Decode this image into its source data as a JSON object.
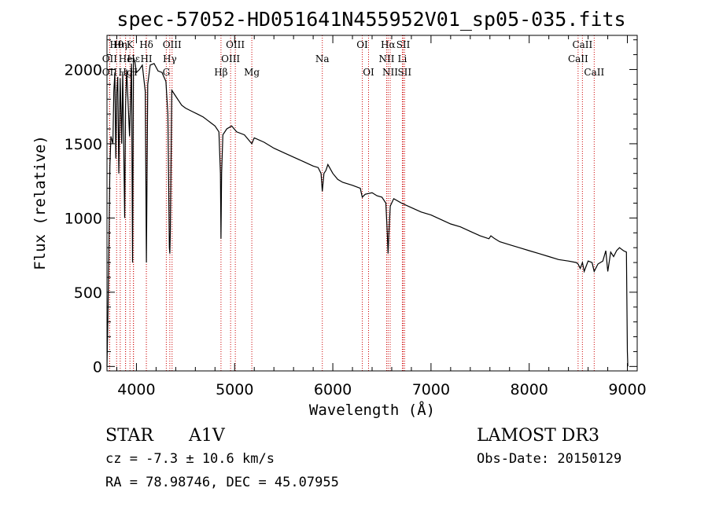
{
  "chart_data": {
    "type": "line",
    "title": "spec-57052-HD051641N455952V01_sp05-035.fits",
    "xlabel": "Wavelength (Å)",
    "ylabel": "Flux (relative)",
    "xlim": [
      3700,
      9100
    ],
    "ylim": [
      -30,
      2230
    ],
    "x_ticks": [
      4000,
      5000,
      6000,
      7000,
      8000,
      9000
    ],
    "y_ticks": [
      0,
      500,
      1000,
      1500,
      2000
    ],
    "series": [
      {
        "name": "spectrum",
        "x": [
          3700,
          3710,
          3720,
          3730,
          3740,
          3760,
          3770,
          3780,
          3790,
          3800,
          3810,
          3820,
          3835,
          3850,
          3860,
          3880,
          3889,
          3900,
          3930,
          3950,
          3960,
          3970,
          3985,
          4000,
          4030,
          4060,
          4090,
          4101,
          4115,
          4140,
          4180,
          4220,
          4260,
          4300,
          4320,
          4335,
          4340,
          4345,
          4360,
          4400,
          4430,
          4460,
          4500,
          4560,
          4620,
          4680,
          4720,
          4760,
          4800,
          4840,
          4855,
          4861,
          4867,
          4880,
          4920,
          4970,
          5020,
          5100,
          5175,
          5200,
          5300,
          5400,
          5500,
          5600,
          5700,
          5800,
          5850,
          5880,
          5893,
          5910,
          5930,
          5950,
          6000,
          6050,
          6100,
          6200,
          6280,
          6300,
          6330,
          6400,
          6450,
          6500,
          6540,
          6555,
          6563,
          6570,
          6585,
          6620,
          6700,
          6800,
          6900,
          7000,
          7100,
          7200,
          7300,
          7400,
          7500,
          7590,
          7610,
          7650,
          7700,
          7800,
          7900,
          8000,
          8100,
          8200,
          8300,
          8400,
          8480,
          8498,
          8520,
          8542,
          8560,
          8600,
          8640,
          8662,
          8700,
          8750,
          8780,
          8800,
          8830,
          8860,
          8890,
          8920,
          8960,
          8990,
          9000,
          9005
        ],
        "values": [
          0,
          350,
          820,
          1350,
          1550,
          1500,
          1850,
          1980,
          1400,
          1850,
          1950,
          1300,
          1940,
          1500,
          1980,
          1000,
          1750,
          2000,
          1550,
          2040,
          700,
          2080,
          2050,
          1980,
          2000,
          2030,
          1850,
          700,
          1900,
          2030,
          2040,
          1990,
          1980,
          1920,
          1700,
          800,
          760,
          900,
          1860,
          1820,
          1790,
          1760,
          1740,
          1720,
          1700,
          1680,
          1660,
          1640,
          1620,
          1580,
          1300,
          860,
          1300,
          1560,
          1600,
          1620,
          1580,
          1560,
          1500,
          1540,
          1510,
          1470,
          1440,
          1410,
          1380,
          1350,
          1340,
          1300,
          1180,
          1300,
          1320,
          1360,
          1300,
          1260,
          1240,
          1220,
          1200,
          1140,
          1160,
          1170,
          1150,
          1140,
          1100,
          900,
          760,
          880,
          1080,
          1130,
          1100,
          1070,
          1040,
          1020,
          990,
          960,
          940,
          910,
          880,
          860,
          880,
          860,
          840,
          820,
          800,
          780,
          760,
          740,
          720,
          710,
          700,
          690,
          660,
          700,
          640,
          710,
          700,
          640,
          690,
          710,
          780,
          640,
          770,
          740,
          780,
          800,
          780,
          770,
          100,
          0
        ],
        "color": "#000000"
      }
    ],
    "line_markers": [
      {
        "label": "OII",
        "x": 3727,
        "row": 1
      },
      {
        "label": "OII",
        "x": 3727,
        "row": 2
      },
      {
        "label": "Hθ",
        "x": 3798,
        "row": 0
      },
      {
        "label": "Hη",
        "x": 3835,
        "row": 0
      },
      {
        "label": "He",
        "x": 3889,
        "row": 1
      },
      {
        "label": "Hg",
        "x": 3889,
        "row": 2
      },
      {
        "label": "Hε",
        "x": 3970,
        "row": 1
      },
      {
        "label": "K",
        "x": 3934,
        "row": 0
      },
      {
        "label": "H",
        "x": 3969,
        "row": 2
      },
      {
        "label": "Hδ",
        "x": 4101,
        "row": 0
      },
      {
        "label": "HI",
        "x": 4101,
        "row": 1
      },
      {
        "label": "G",
        "x": 4304,
        "row": 2
      },
      {
        "label": "Hγ",
        "x": 4340,
        "row": 1
      },
      {
        "label": "OIII",
        "x": 4363,
        "row": 0
      },
      {
        "label": "Hβ",
        "x": 4861,
        "row": 2
      },
      {
        "label": "OIII",
        "x": 4959,
        "row": 1
      },
      {
        "label": "OIII",
        "x": 5007,
        "row": 0
      },
      {
        "label": "Mg",
        "x": 5175,
        "row": 2
      },
      {
        "label": "Na",
        "x": 5893,
        "row": 1
      },
      {
        "label": "OI",
        "x": 6300,
        "row": 0
      },
      {
        "label": "OI",
        "x": 6364,
        "row": 2
      },
      {
        "label": "Hα",
        "x": 6563,
        "row": 0
      },
      {
        "label": "NII",
        "x": 6548,
        "row": 1
      },
      {
        "label": "NII",
        "x": 6584,
        "row": 2
      },
      {
        "label": "SII",
        "x": 6717,
        "row": 0
      },
      {
        "label": "Li",
        "x": 6708,
        "row": 1
      },
      {
        "label": "SII",
        "x": 6731,
        "row": 2
      },
      {
        "label": "CaII",
        "x": 8498,
        "row": 1
      },
      {
        "label": "CaII",
        "x": 8542,
        "row": 0
      },
      {
        "label": "CaII",
        "x": 8662,
        "row": 2
      }
    ],
    "grid": false,
    "legend": "none",
    "marker_color": "#cc0000"
  },
  "info": {
    "object_type": "STAR",
    "spectral_class": "A1V",
    "survey": "LAMOST DR3",
    "redshift": "cz = -7.3 ± 10.6 km/s",
    "obs_date": "Obs-Date: 20150129",
    "coordinates": "RA =  78.98746, DEC =  45.07955"
  }
}
